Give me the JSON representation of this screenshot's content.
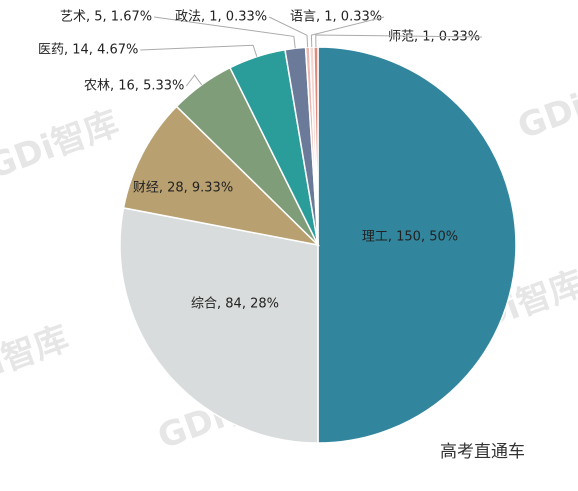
{
  "chart_data": {
    "type": "pie",
    "categories": [
      "理工",
      "综合",
      "财经",
      "农林",
      "医药",
      "艺术",
      "政法",
      "语言",
      "师范"
    ],
    "values": [
      150,
      84,
      28,
      16,
      14,
      5,
      1,
      1,
      1
    ],
    "value_labels": [
      "理工, 150, 50%",
      "综合, 84, 28%",
      "财经, 28, 9.33%",
      "农林, 16, 5.33%",
      "医药, 14, 4.67%",
      "艺术, 5, 1.67%",
      "政法, 1, 0.33%",
      "语言, 1, 0.33%",
      "师范, 1, 0.33%"
    ],
    "colors": [
      "#31869e",
      "#d9dcdc",
      "#b9a071",
      "#7f9d78",
      "#2a9d9a",
      "#6b7a99",
      "#e8b7b0",
      "#f2d6cf",
      "#e08a7c"
    ],
    "watermark": "GDi智库",
    "source": "高考直通车"
  }
}
